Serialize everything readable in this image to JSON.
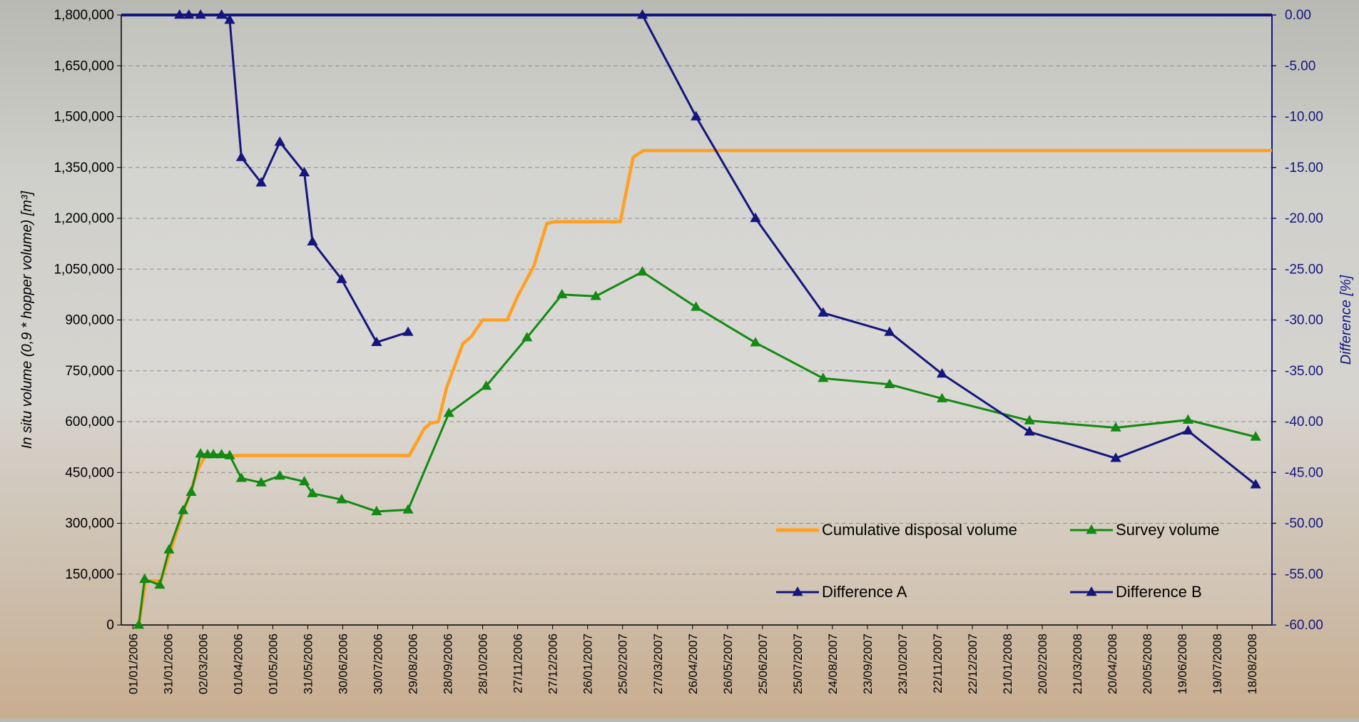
{
  "chart_data": {
    "type": "line",
    "title": "",
    "ylabel": "In situ volume (0,9 * hopper volume) [m³]",
    "y2label": "Difference [%]",
    "ylim": [
      0,
      1800000
    ],
    "y2lim": [
      -60,
      0
    ],
    "yticks": [
      0,
      150000,
      300000,
      450000,
      600000,
      750000,
      900000,
      1050000,
      1200000,
      1350000,
      1500000,
      1650000,
      1800000
    ],
    "ytick_labels": [
      "0",
      "150,000",
      "300,000",
      "450,000",
      "600,000",
      "750,000",
      "900,000",
      "1,050,000",
      "1,200,000",
      "1,350,000",
      "1,500,000",
      "1,650,000",
      "1,800,000"
    ],
    "y2ticks": [
      -60,
      -55,
      -50,
      -45,
      -40,
      -35,
      -30,
      -25,
      -20,
      -15,
      -10,
      -5,
      0
    ],
    "y2tick_labels": [
      "-60.00",
      "-55.00",
      "-50.00",
      "-45.00",
      "-40.00",
      "-35.00",
      "-30.00",
      "-25.00",
      "-20.00",
      "-15.00",
      "-10.00",
      "-5.00",
      "0.00"
    ],
    "xlim": [
      "2005-12-22",
      "2008-09-04"
    ],
    "xtick_labels": [
      "01/01/2006",
      "31/01/2006",
      "02/03/2006",
      "01/04/2006",
      "01/05/2006",
      "31/05/2006",
      "30/06/2006",
      "30/07/2006",
      "29/08/2006",
      "28/09/2006",
      "28/10/2006",
      "27/11/2006",
      "27/12/2006",
      "26/01/2007",
      "25/02/2007",
      "27/03/2007",
      "26/04/2007",
      "26/05/2007",
      "25/06/2007",
      "25/07/2007",
      "24/08/2007",
      "23/09/2007",
      "23/10/2007",
      "22/11/2007",
      "22/12/2007",
      "21/01/2008",
      "20/02/2008",
      "21/03/2008",
      "20/04/2008",
      "20/05/2008",
      "19/06/2008",
      "19/07/2008",
      "18/08/2008"
    ],
    "grid": true,
    "legend_position": "bottom-right",
    "series": [
      {
        "name": "Cumulative disposal volume",
        "axis": "left",
        "color": "#ffa020",
        "marker": "none",
        "points": [
          [
            "2006-01-06",
            0
          ],
          [
            "2006-01-12",
            130000
          ],
          [
            "2006-01-25",
            130000
          ],
          [
            "2006-02-08",
            280000
          ],
          [
            "2006-02-26",
            460000
          ],
          [
            "2006-03-04",
            500000
          ],
          [
            "2006-08-26",
            500000
          ],
          [
            "2006-09-08",
            580000
          ],
          [
            "2006-09-13",
            595000
          ],
          [
            "2006-09-20",
            600000
          ],
          [
            "2006-09-27",
            700000
          ],
          [
            "2006-10-11",
            830000
          ],
          [
            "2006-10-18",
            850000
          ],
          [
            "2006-10-28",
            900000
          ],
          [
            "2006-11-18",
            900000
          ],
          [
            "2006-11-27",
            970000
          ],
          [
            "2006-12-11",
            1060000
          ],
          [
            "2006-12-22",
            1185000
          ],
          [
            "2006-12-29",
            1190000
          ],
          [
            "2007-02-23",
            1190000
          ],
          [
            "2007-03-06",
            1380000
          ],
          [
            "2007-03-15",
            1400000
          ],
          [
            "2008-09-04",
            1400000
          ]
        ]
      },
      {
        "name": "Survey volume",
        "axis": "left",
        "color": "#138a13",
        "marker": "triangle",
        "points": [
          [
            "2006-01-06",
            0
          ],
          [
            "2006-01-11",
            135000
          ],
          [
            "2006-01-24",
            118000
          ],
          [
            "2006-02-01",
            222000
          ],
          [
            "2006-02-13",
            338000
          ],
          [
            "2006-02-20",
            392000
          ],
          [
            "2006-02-28",
            505000
          ],
          [
            "2006-03-06",
            503000
          ],
          [
            "2006-03-11",
            503000
          ],
          [
            "2006-03-18",
            503000
          ],
          [
            "2006-03-25",
            500000
          ],
          [
            "2006-04-04",
            433000
          ],
          [
            "2006-04-21",
            420000
          ],
          [
            "2006-05-07",
            440000
          ],
          [
            "2006-05-28",
            423000
          ],
          [
            "2006-06-04",
            388000
          ],
          [
            "2006-06-29",
            370000
          ],
          [
            "2006-07-29",
            335000
          ],
          [
            "2006-08-25",
            340000
          ],
          [
            "2006-09-29",
            625000
          ],
          [
            "2006-10-31",
            705000
          ],
          [
            "2006-12-05",
            848000
          ],
          [
            "2007-01-04",
            975000
          ],
          [
            "2007-02-02",
            970000
          ],
          [
            "2007-03-14",
            1042000
          ],
          [
            "2007-04-29",
            938000
          ],
          [
            "2007-06-19",
            833000
          ],
          [
            "2007-08-16",
            728000
          ],
          [
            "2007-10-12",
            710000
          ],
          [
            "2007-11-26",
            668000
          ],
          [
            "2008-02-09",
            603000
          ],
          [
            "2008-04-23",
            582000
          ],
          [
            "2008-06-24",
            605000
          ],
          [
            "2008-08-21",
            555000
          ]
        ]
      },
      {
        "name": "Difference A",
        "axis": "right",
        "color": "#14167e",
        "marker": "triangle",
        "points": [
          [
            "2006-02-10",
            0
          ],
          [
            "2006-02-18",
            0
          ],
          [
            "2006-02-28",
            0
          ],
          [
            "2006-03-18",
            0
          ],
          [
            "2006-03-25",
            -0.5
          ],
          [
            "2006-04-04",
            -14
          ],
          [
            "2006-04-21",
            -16.5
          ],
          [
            "2006-05-07",
            -12.5
          ],
          [
            "2006-05-28",
            -15.5
          ],
          [
            "2006-06-04",
            -22.3
          ],
          [
            "2006-06-29",
            -26
          ],
          [
            "2006-07-29",
            -32.2
          ],
          [
            "2006-08-25",
            -31.2
          ]
        ]
      },
      {
        "name": "Difference B",
        "axis": "right",
        "color": "#14167e",
        "marker": "triangle",
        "points": [
          [
            "2007-03-14",
            0
          ],
          [
            "2007-04-29",
            -10
          ],
          [
            "2007-06-19",
            -20
          ],
          [
            "2007-08-16",
            -29.3
          ],
          [
            "2007-10-12",
            -31.2
          ],
          [
            "2007-11-26",
            -35.3
          ],
          [
            "2008-02-09",
            -41
          ],
          [
            "2008-04-23",
            -43.6
          ],
          [
            "2008-06-24",
            -40.9
          ],
          [
            "2008-08-21",
            -46.2
          ]
        ]
      }
    ]
  }
}
